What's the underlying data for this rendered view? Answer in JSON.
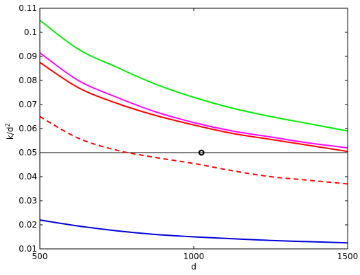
{
  "chart_data": {
    "type": "line",
    "xlabel": "d",
    "ylabel": "k/d",
    "ylabel_superscript": "2",
    "xlim": [
      500,
      1500
    ],
    "ylim": [
      0.01,
      0.11
    ],
    "xticks": [
      500,
      1000,
      1500
    ],
    "xtick_labels": [
      "500",
      "1000",
      "1500"
    ],
    "yticks": [
      0.01,
      0.02,
      0.03,
      0.04,
      0.05,
      0.06,
      0.07,
      0.08,
      0.09,
      0.1,
      0.11
    ],
    "ytick_labels": [
      "0.01",
      "0.02",
      "0.03",
      "0.04",
      "0.05",
      "0.06",
      "0.07",
      "0.08",
      "0.09",
      "0.1",
      "0.11"
    ],
    "grid": false,
    "x": [
      500,
      625,
      750,
      875,
      1000,
      1125,
      1250,
      1375,
      1500
    ],
    "series": [
      {
        "color": "#00ee00",
        "dash": "solid",
        "values": [
          0.105,
          0.093,
          0.0855,
          0.0785,
          0.073,
          0.0685,
          0.065,
          0.062,
          0.059
        ]
      },
      {
        "color": "#ff00ff",
        "dash": "solid",
        "values": [
          0.0915,
          0.08,
          0.073,
          0.067,
          0.0625,
          0.059,
          0.0565,
          0.054,
          0.052
        ]
      },
      {
        "color": "#ff0000",
        "dash": "solid",
        "values": [
          0.0875,
          0.077,
          0.0705,
          0.0655,
          0.0615,
          0.058,
          0.0555,
          0.053,
          0.0505
        ]
      },
      {
        "color": "#ff0000",
        "dash": "dashed",
        "values": [
          0.065,
          0.056,
          0.051,
          0.048,
          0.0455,
          0.0425,
          0.04,
          0.0385,
          0.037
        ]
      },
      {
        "color": "#0000dd",
        "dash": "solid",
        "values": [
          0.022,
          0.0195,
          0.0175,
          0.016,
          0.015,
          0.0142,
          0.0135,
          0.013,
          0.0125
        ]
      }
    ],
    "reference_line": {
      "y": 0.05,
      "color": "#000000"
    },
    "marker": {
      "x": 1025,
      "y": 0.05,
      "shape": "circle",
      "color": "#000000"
    }
  }
}
